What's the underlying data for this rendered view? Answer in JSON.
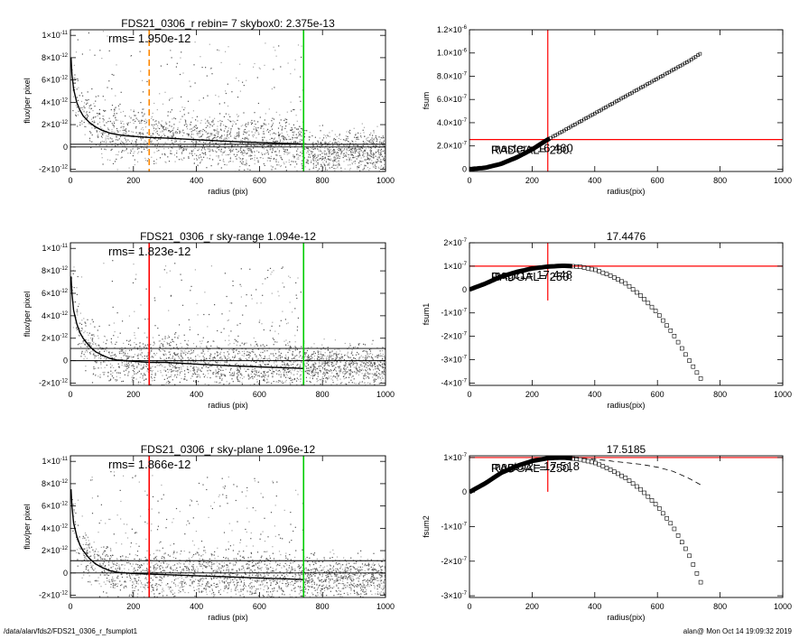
{
  "footer": {
    "path": "/data/alan/fds2/FDS21_0306_r_fsumplot1",
    "stamp": "alan@  Mon Oct 14 19:09:32 2019"
  },
  "chart_data": [
    {
      "id": "p1",
      "type": "scatter",
      "title": "FDS21_0306_r rebin= 7    skybox0:  2.375e-13",
      "annotation": "rms= 1.950e-12",
      "xlabel": "radius (pix)",
      "ylabel": "flux/per pixel",
      "xlim": [
        0,
        1000
      ],
      "ylim": [
        -2.2e-12,
        1.05e-11
      ],
      "xticks": [
        0,
        200,
        400,
        600,
        800,
        1000
      ],
      "yticks": [
        {
          "v": -2e-12,
          "m": "-2",
          "e": "-12"
        },
        {
          "v": 0,
          "m": "0",
          "e": ""
        },
        {
          "v": 2e-12,
          "m": "2",
          "e": "-12"
        },
        {
          "v": 4e-12,
          "m": "4",
          "e": "-12"
        },
        {
          "v": 6e-12,
          "m": "6",
          "e": "-12"
        },
        {
          "v": 8e-12,
          "m": "8",
          "e": "-12"
        },
        {
          "v": 1e-11,
          "m": "1",
          "e": "-11"
        }
      ],
      "hlines": [
        0,
        2.375e-13
      ],
      "vlines": [
        {
          "x": 250,
          "color": "#ff8800",
          "dash": true
        },
        {
          "x": 740,
          "color": "#00cc00",
          "dash": false
        }
      ],
      "profile": [
        [
          2,
          8e-12
        ],
        [
          5,
          6.5e-12
        ],
        [
          10,
          5.2e-12
        ],
        [
          20,
          4e-12
        ],
        [
          30,
          3.3e-12
        ],
        [
          40,
          2.8e-12
        ],
        [
          60,
          2.2e-12
        ],
        [
          80,
          1.8e-12
        ],
        [
          100,
          1.5e-12
        ],
        [
          125,
          1.25e-12
        ],
        [
          150,
          1.1e-12
        ],
        [
          175,
          1e-12
        ],
        [
          200,
          9.5e-13
        ],
        [
          250,
          8.5e-13
        ],
        [
          300,
          8e-13
        ],
        [
          400,
          6.5e-13
        ],
        [
          500,
          5e-13
        ],
        [
          600,
          4e-13
        ],
        [
          700,
          3e-13
        ],
        [
          740,
          2.5e-13
        ]
      ],
      "colors": {
        "scatter_dark": "#555555",
        "scatter_light": "#a8a8a8",
        "profile": "#000000"
      }
    },
    {
      "id": "p2",
      "type": "line",
      "title": "",
      "annotation": "",
      "xlabel": "radius(pix)",
      "ylabel": "fsum",
      "xlim": [
        0,
        1000
      ],
      "ylim": [
        -2e-08,
        1.2e-06
      ],
      "xticks": [
        0,
        200,
        400,
        600,
        800,
        1000
      ],
      "yticks": [
        {
          "v": 0,
          "m": "0",
          "e": ""
        },
        {
          "v": 2e-07,
          "m": "2.0",
          "e": "-7"
        },
        {
          "v": 4e-07,
          "m": "4.0",
          "e": "-7"
        },
        {
          "v": 6e-07,
          "m": "6.0",
          "e": "-7"
        },
        {
          "v": 8e-07,
          "m": "8.0",
          "e": "-7"
        },
        {
          "v": 1e-06,
          "m": "1.0",
          "e": "-6"
        },
        {
          "v": 1.2e-06,
          "m": "1.2",
          "e": "-6"
        }
      ],
      "marker_labels": [
        {
          "text": "master= 16.460"
        },
        {
          "text": "RADGAL=  250."
        }
      ],
      "crosshair": {
        "x": 250,
        "y": 2.55e-07,
        "color": "#ff0000"
      },
      "series": [
        {
          "points": [
            [
              0,
              0
            ],
            [
              50,
              1.2e-08
            ],
            [
              100,
              4.5e-08
            ],
            [
              150,
              1e-07
            ],
            [
              200,
              1.7e-07
            ],
            [
              250,
              2.55e-07
            ],
            [
              300,
              3.3e-07
            ],
            [
              400,
              4.8e-07
            ],
            [
              500,
              6.3e-07
            ],
            [
              600,
              7.8e-07
            ],
            [
              700,
              9.3e-07
            ],
            [
              740,
              1e-06
            ]
          ],
          "style": "thick"
        }
      ]
    },
    {
      "id": "p3",
      "type": "scatter",
      "title": "FDS21_0306_r sky-range  1.094e-12",
      "annotation": "rms= 1.823e-12",
      "xlabel": "radius (pix)",
      "ylabel": "flux/per pixel",
      "xlim": [
        0,
        1000
      ],
      "ylim": [
        -2.2e-12,
        1.05e-11
      ],
      "xticks": [
        0,
        200,
        400,
        600,
        800,
        1000
      ],
      "yticks": [
        {
          "v": -2e-12,
          "m": "-2",
          "e": "-12"
        },
        {
          "v": 0,
          "m": "0",
          "e": ""
        },
        {
          "v": 2e-12,
          "m": "2",
          "e": "-12"
        },
        {
          "v": 4e-12,
          "m": "4",
          "e": "-12"
        },
        {
          "v": 6e-12,
          "m": "6",
          "e": "-12"
        },
        {
          "v": 8e-12,
          "m": "8",
          "e": "-12"
        },
        {
          "v": 1e-11,
          "m": "1",
          "e": "-11"
        }
      ],
      "hlines": [
        0,
        1.094e-12
      ],
      "vlines": [
        {
          "x": 250,
          "color": "#ff0000",
          "dash": false
        },
        {
          "x": 740,
          "color": "#00cc00",
          "dash": false
        }
      ],
      "profile": [
        [
          2,
          7.5e-12
        ],
        [
          5,
          6e-12
        ],
        [
          10,
          4.5e-12
        ],
        [
          20,
          3.3e-12
        ],
        [
          30,
          2.5e-12
        ],
        [
          40,
          2e-12
        ],
        [
          60,
          1.3e-12
        ],
        [
          80,
          8e-13
        ],
        [
          100,
          5e-13
        ],
        [
          125,
          2e-13
        ],
        [
          150,
          5e-14
        ],
        [
          200,
          -5e-14
        ],
        [
          250,
          -1.5e-13
        ],
        [
          300,
          -1.5e-13
        ],
        [
          400,
          -3e-13
        ],
        [
          500,
          -4.5e-13
        ],
        [
          600,
          -5.5e-13
        ],
        [
          700,
          -6.5e-13
        ],
        [
          740,
          -7e-13
        ]
      ],
      "colors": {
        "scatter_dark": "#555555",
        "scatter_light": "#a8a8a8",
        "profile": "#000000"
      }
    },
    {
      "id": "p4",
      "type": "line",
      "title": "17.4476",
      "annotation": "",
      "xlabel": "radius(pix)",
      "ylabel": "fsum1",
      "xlim": [
        0,
        1000
      ],
      "ylim": [
        -4.1e-07,
        2e-07
      ],
      "xticks": [
        0,
        200,
        400,
        600,
        800,
        1000
      ],
      "yticks": [
        {
          "v": -4e-07,
          "m": "-4",
          "e": "-7"
        },
        {
          "v": -3e-07,
          "m": "-3",
          "e": "-7"
        },
        {
          "v": -2e-07,
          "m": "-2",
          "e": "-7"
        },
        {
          "v": -1e-07,
          "m": "-1",
          "e": "-7"
        },
        {
          "v": 0,
          "m": "0",
          "e": ""
        },
        {
          "v": 1e-07,
          "m": "1",
          "e": "-7"
        },
        {
          "v": 2e-07,
          "m": "2",
          "e": "-7"
        }
      ],
      "marker_labels": [
        {
          "text": "magc1= 17.448"
        },
        {
          "text": "RADGAL=  250."
        }
      ],
      "crosshair": {
        "x": 250,
        "y": 1e-07,
        "color": "#ff0000"
      },
      "series": [
        {
          "points": [
            [
              0,
              0
            ],
            [
              50,
              2.5e-08
            ],
            [
              100,
              5.5e-08
            ],
            [
              150,
              7.5e-08
            ],
            [
              200,
              9e-08
            ],
            [
              250,
              9.8e-08
            ],
            [
              300,
              1.02e-07
            ],
            [
              350,
              9.8e-08
            ],
            [
              400,
              8.5e-08
            ],
            [
              450,
              6e-08
            ],
            [
              500,
              2.5e-08
            ],
            [
              550,
              -3e-08
            ],
            [
              600,
              -1e-07
            ],
            [
              650,
              -1.9e-07
            ],
            [
              700,
              -3e-07
            ],
            [
              740,
              -3.85e-07
            ]
          ],
          "style": "thick-to-squares",
          "switch_x": 330
        }
      ]
    },
    {
      "id": "p5",
      "type": "scatter",
      "title": "FDS21_0306_r sky-plane  1.096e-12",
      "annotation": "rms= 1.866e-12",
      "xlabel": "radius (pix)",
      "ylabel": "flux/per pixel",
      "xlim": [
        0,
        1000
      ],
      "ylim": [
        -2.2e-12,
        1.05e-11
      ],
      "xticks": [
        0,
        200,
        400,
        600,
        800,
        1000
      ],
      "yticks": [
        {
          "v": -2e-12,
          "m": "-2",
          "e": "-12"
        },
        {
          "v": 0,
          "m": "0",
          "e": ""
        },
        {
          "v": 2e-12,
          "m": "2",
          "e": "-12"
        },
        {
          "v": 4e-12,
          "m": "4",
          "e": "-12"
        },
        {
          "v": 6e-12,
          "m": "6",
          "e": "-12"
        },
        {
          "v": 8e-12,
          "m": "8",
          "e": "-12"
        },
        {
          "v": 1e-11,
          "m": "1",
          "e": "-11"
        }
      ],
      "hlines": [
        0,
        1.096e-12
      ],
      "vlines": [
        {
          "x": 250,
          "color": "#ff0000",
          "dash": false
        },
        {
          "x": 740,
          "color": "#00cc00",
          "dash": false
        }
      ],
      "profile": [
        [
          2,
          7.5e-12
        ],
        [
          5,
          6e-12
        ],
        [
          10,
          4.5e-12
        ],
        [
          20,
          3.3e-12
        ],
        [
          30,
          2.5e-12
        ],
        [
          40,
          2e-12
        ],
        [
          60,
          1.3e-12
        ],
        [
          80,
          8e-13
        ],
        [
          100,
          5e-13
        ],
        [
          125,
          2e-13
        ],
        [
          150,
          5e-14
        ],
        [
          200,
          -5e-14
        ],
        [
          250,
          -1e-13
        ],
        [
          300,
          -1.5e-13
        ],
        [
          400,
          -2.5e-13
        ],
        [
          500,
          -3.5e-13
        ],
        [
          600,
          -4.5e-13
        ],
        [
          700,
          -5.5e-13
        ],
        [
          740,
          -6e-13
        ]
      ],
      "colors": {
        "scatter_dark": "#555555",
        "scatter_light": "#a8a8a8",
        "profile": "#000000"
      }
    },
    {
      "id": "p6",
      "type": "line",
      "title": "17.5185",
      "annotation": "",
      "xlabel": "radius(pix)",
      "ylabel": "fsum2",
      "xlim": [
        0,
        1000
      ],
      "ylim": [
        -3.05e-07,
        1.05e-07
      ],
      "xticks": [
        0,
        200,
        400,
        600,
        800,
        1000
      ],
      "yticks": [
        {
          "v": -3e-07,
          "m": "-3",
          "e": "-7"
        },
        {
          "v": -2e-07,
          "m": "-2",
          "e": "-7"
        },
        {
          "v": -1e-07,
          "m": "-1",
          "e": "-7"
        },
        {
          "v": 0,
          "m": "0",
          "e": ""
        },
        {
          "v": 1e-07,
          "m": "1",
          "e": "-7"
        }
      ],
      "marker_labels": [
        {
          "text": "magtot2= 17.518"
        },
        {
          "text": "RADGAL=  250."
        }
      ],
      "crosshair": {
        "x": 250,
        "y": 1e-07,
        "color": "#ff0000"
      },
      "series": [
        {
          "points": [
            [
              0,
              0
            ],
            [
              50,
              2.5e-08
            ],
            [
              100,
              5.5e-08
            ],
            [
              150,
              7.5e-08
            ],
            [
              200,
              9e-08
            ],
            [
              250,
              9.8e-08
            ],
            [
              300,
              1e-07
            ],
            [
              350,
              9.5e-08
            ],
            [
              400,
              8.5e-08
            ],
            [
              450,
              6.5e-08
            ],
            [
              500,
              4e-08
            ],
            [
              550,
              5e-09
            ],
            [
              600,
              -4e-08
            ],
            [
              650,
              -1e-07
            ],
            [
              700,
              -1.8e-07
            ],
            [
              740,
              -2.65e-07
            ]
          ],
          "style": "thick-to-squares",
          "switch_x": 330
        },
        {
          "points": [
            [
              330,
              1e-07
            ],
            [
              400,
              9.5e-08
            ],
            [
              450,
              9e-08
            ],
            [
              500,
              8.5e-08
            ],
            [
              550,
              8e-08
            ],
            [
              600,
              7.2e-08
            ],
            [
              650,
              6e-08
            ],
            [
              700,
              4e-08
            ],
            [
              740,
              2e-08
            ]
          ],
          "style": "dashed"
        }
      ]
    }
  ]
}
